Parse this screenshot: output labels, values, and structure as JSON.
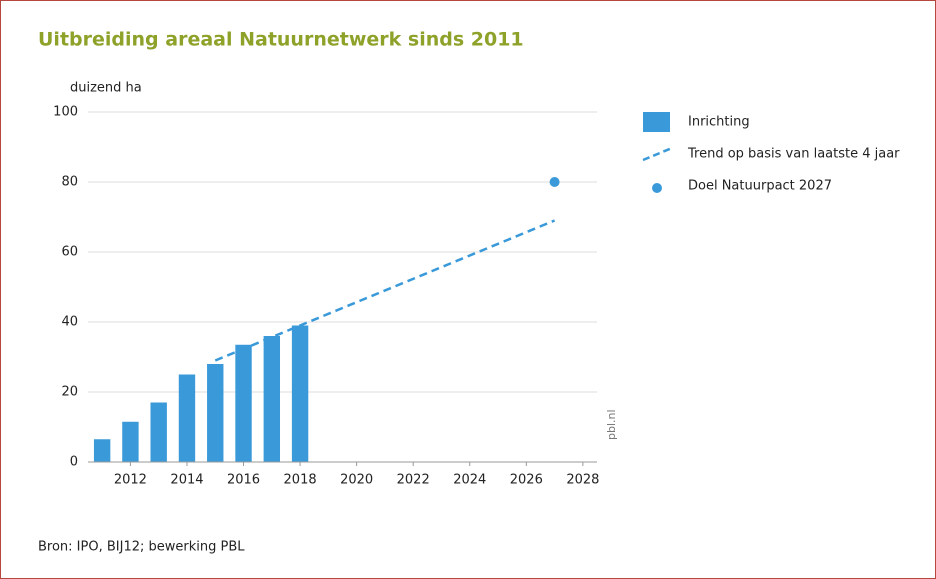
{
  "chart_data": {
    "type": "bar",
    "title": "Uitbreiding areaal Natuurnetwerk sinds 2011",
    "y_axis_label": "duizend ha",
    "source": "Bron: IPO, BIJ12; bewerking PBL",
    "watermark": "pbl.nl",
    "xlim": [
      2010.5,
      2028.5
    ],
    "xticks": [
      2012,
      2014,
      2016,
      2018,
      2020,
      2022,
      2024,
      2026,
      2028
    ],
    "ylim": [
      0,
      100
    ],
    "yticks": [
      0,
      20,
      40,
      60,
      80,
      100
    ],
    "grid": true,
    "legend": "right",
    "series": [
      {
        "name": "Inrichting",
        "type": "bar",
        "color": "#3a9ad9",
        "x": [
          2011,
          2012,
          2013,
          2014,
          2015,
          2016,
          2017,
          2018
        ],
        "values": [
          6.5,
          11.5,
          17,
          25,
          28,
          33.5,
          36,
          39
        ]
      },
      {
        "name": "Trend op basis van laatste 4 jaar",
        "type": "line",
        "color": "#3a9ad9",
        "dashed": true,
        "x": [
          2015,
          2027
        ],
        "values": [
          29,
          69
        ]
      },
      {
        "name": "Doel Natuurpact 2027",
        "type": "scatter",
        "color": "#3a9ad9",
        "x": [
          2027
        ],
        "values": [
          80
        ]
      }
    ]
  }
}
